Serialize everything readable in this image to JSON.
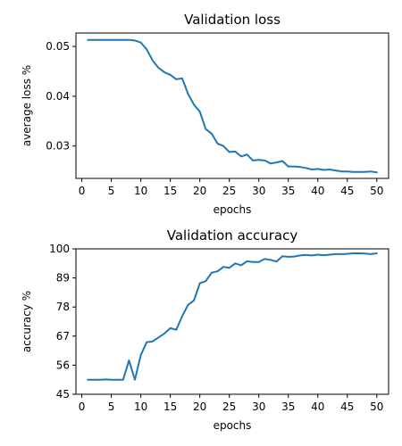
{
  "chart_data": [
    {
      "type": "line",
      "title": "Validation loss",
      "xlabel": "epochs",
      "ylabel": "average loss %",
      "color": "#1f77b4",
      "xlim": [
        -1,
        52
      ],
      "ylim": [
        0.0235,
        0.0527
      ],
      "xticks": [
        0,
        5,
        10,
        15,
        20,
        25,
        30,
        35,
        40,
        45,
        50
      ],
      "yticks": [
        0.03,
        0.04,
        0.05
      ],
      "ytick_labels": [
        "0.03",
        "0.04",
        "0.05"
      ],
      "x": [
        1,
        2,
        3,
        4,
        5,
        6,
        7,
        8,
        9,
        10,
        11,
        12,
        13,
        14,
        15,
        16,
        17,
        18,
        19,
        20,
        21,
        22,
        23,
        24,
        25,
        26,
        27,
        28,
        29,
        30,
        31,
        32,
        33,
        34,
        35,
        36,
        37,
        38,
        39,
        40,
        41,
        42,
        43,
        44,
        45,
        46,
        47,
        48,
        49,
        50
      ],
      "values": [
        0.0513,
        0.0513,
        0.0513,
        0.0513,
        0.0513,
        0.0513,
        0.0513,
        0.0513,
        0.0512,
        0.0508,
        0.0494,
        0.0472,
        0.0457,
        0.0448,
        0.0443,
        0.0434,
        0.0436,
        0.0405,
        0.0383,
        0.0369,
        0.0334,
        0.0325,
        0.0305,
        0.03,
        0.0288,
        0.0289,
        0.0279,
        0.0283,
        0.0271,
        0.0272,
        0.0271,
        0.0265,
        0.0267,
        0.027,
        0.0259,
        0.0259,
        0.0258,
        0.0256,
        0.0253,
        0.0254,
        0.0252,
        0.0253,
        0.0251,
        0.0249,
        0.0249,
        0.0248,
        0.0248,
        0.0248,
        0.0249,
        0.0247
      ]
    },
    {
      "type": "line",
      "title": "Validation accuracy",
      "xlabel": "epochs",
      "ylabel": "accuracy %",
      "color": "#1f77b4",
      "xlim": [
        -1,
        52
      ],
      "ylim": [
        45,
        100
      ],
      "xticks": [
        0,
        5,
        10,
        15,
        20,
        25,
        30,
        35,
        40,
        45,
        50
      ],
      "yticks": [
        45,
        56,
        67,
        78,
        89,
        100
      ],
      "ytick_labels": [
        "45",
        "56",
        "67",
        "78",
        "89",
        "100"
      ],
      "x": [
        1,
        2,
        3,
        4,
        5,
        6,
        7,
        8,
        9,
        10,
        11,
        12,
        13,
        14,
        15,
        16,
        17,
        18,
        19,
        20,
        21,
        22,
        23,
        24,
        25,
        26,
        27,
        28,
        29,
        30,
        31,
        32,
        33,
        34,
        35,
        36,
        37,
        38,
        39,
        40,
        41,
        42,
        43,
        44,
        45,
        46,
        47,
        48,
        49,
        50
      ],
      "values": [
        50.5,
        50.5,
        50.5,
        50.6,
        50.5,
        50.5,
        50.5,
        57.8,
        50.5,
        59.8,
        64.7,
        65.0,
        66.5,
        68.0,
        70.0,
        69.4,
        74.5,
        78.8,
        80.5,
        87.0,
        87.8,
        91.0,
        91.5,
        93.2,
        92.8,
        94.5,
        93.8,
        95.3,
        95.0,
        95.0,
        96.2,
        95.8,
        95.2,
        97.2,
        97.0,
        97.1,
        97.5,
        97.7,
        97.5,
        97.8,
        97.6,
        97.8,
        98.0,
        98.0,
        98.1,
        98.3,
        98.3,
        98.2,
        98.0,
        98.3
      ]
    }
  ]
}
